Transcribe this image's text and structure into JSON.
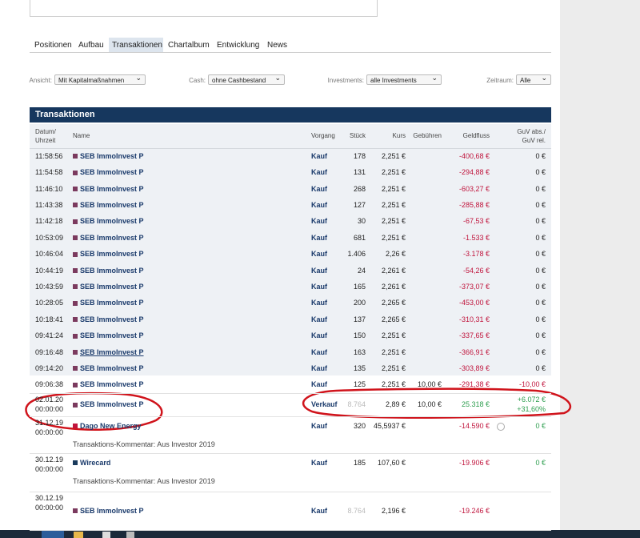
{
  "tabs": [
    "Positionen",
    "Aufbau",
    "Transaktionen",
    "Chartalbum",
    "Entwicklung",
    "News"
  ],
  "filters": [
    {
      "label": "Ansicht:",
      "value": "Mit Kapitalmaßnahmen"
    },
    {
      "label": "Cash:",
      "value": "ohne Cashbestand"
    },
    {
      "label": "Investments:",
      "value": "alle Investments"
    },
    {
      "label": "Zeitraum:",
      "value": "Alle"
    }
  ],
  "table": {
    "title": "Transaktionen",
    "columns": [
      "Datum/ Uhrzeit",
      "Name",
      "Vorgang",
      "Stück",
      "Kurs",
      "Gebühren",
      "Geldfluss",
      "GuV abs./ GuV rel."
    ],
    "rows": [
      {
        "time": "11:58:56",
        "name": "SEB ImmoInvest P",
        "color": "#7b3a5e",
        "type": "Kauf",
        "qty": "178",
        "price": "2,251 €",
        "cashflow": "-400,68 €",
        "pnl": "0 €"
      },
      {
        "time": "11:54:58",
        "name": "SEB ImmoInvest P",
        "color": "#7b3a5e",
        "type": "Kauf",
        "qty": "131",
        "price": "2,251 €",
        "cashflow": "-294,88 €",
        "pnl": "0 €"
      },
      {
        "time": "11:46:10",
        "name": "SEB ImmoInvest P",
        "color": "#7b3a5e",
        "type": "Kauf",
        "qty": "268",
        "price": "2,251 €",
        "cashflow": "-603,27 €",
        "pnl": "0 €"
      },
      {
        "time": "11:43:38",
        "name": "SEB ImmoInvest P",
        "color": "#7b3a5e",
        "type": "Kauf",
        "qty": "127",
        "price": "2,251 €",
        "cashflow": "-285,88 €",
        "pnl": "0 €"
      },
      {
        "time": "11:42:18",
        "name": "SEB ImmoInvest P",
        "color": "#7b3a5e",
        "type": "Kauf",
        "qty": "30",
        "price": "2,251 €",
        "cashflow": "-67,53 €",
        "pnl": "0 €"
      },
      {
        "time": "10:53:09",
        "name": "SEB ImmoInvest P",
        "color": "#7b3a5e",
        "type": "Kauf",
        "qty": "681",
        "price": "2,251 €",
        "cashflow": "-1.533 €",
        "pnl": "0 €"
      },
      {
        "time": "10:46:04",
        "name": "SEB ImmoInvest P",
        "color": "#7b3a5e",
        "type": "Kauf",
        "qty": "1.406",
        "price": "2,26 €",
        "cashflow": "-3.178 €",
        "pnl": "0 €"
      },
      {
        "time": "10:44:19",
        "name": "SEB ImmoInvest P",
        "color": "#7b3a5e",
        "type": "Kauf",
        "qty": "24",
        "price": "2,261 €",
        "cashflow": "-54,26 €",
        "pnl": "0 €"
      },
      {
        "time": "10:43:59",
        "name": "SEB ImmoInvest P",
        "color": "#7b3a5e",
        "type": "Kauf",
        "qty": "165",
        "price": "2,261 €",
        "cashflow": "-373,07 €",
        "pnl": "0 €"
      },
      {
        "time": "10:28:05",
        "name": "SEB ImmoInvest P",
        "color": "#7b3a5e",
        "type": "Kauf",
        "qty": "200",
        "price": "2,265 €",
        "cashflow": "-453,00 €",
        "pnl": "0 €"
      },
      {
        "time": "10:18:41",
        "name": "SEB ImmoInvest P",
        "color": "#7b3a5e",
        "type": "Kauf",
        "qty": "137",
        "price": "2,265 €",
        "cashflow": "-310,31 €",
        "pnl": "0 €"
      },
      {
        "time": "09:41:24",
        "name": "SEB ImmoInvest P",
        "color": "#7b3a5e",
        "type": "Kauf",
        "qty": "150",
        "price": "2,251 €",
        "cashflow": "-337,65 €",
        "pnl": "0 €"
      },
      {
        "time": "09:16:48",
        "name": "SEB ImmoInvest P",
        "color": "#7b3a5e",
        "type": "Kauf",
        "qty": "163",
        "price": "2,251 €",
        "cashflow": "-366,91 €",
        "pnl": "0 €"
      },
      {
        "time": "09:14:20",
        "name": "SEB ImmoInvest P",
        "color": "#7b3a5e",
        "type": "Kauf",
        "qty": "135",
        "price": "2,251 €",
        "cashflow": "-303,89 €",
        "pnl": "0 €"
      },
      {
        "time": "09:06:38",
        "name": "SEB ImmoInvest P",
        "color": "#7b3a5e",
        "type": "Kauf",
        "qty": "125",
        "price": "2,251 €",
        "fee": "10,00 €",
        "cashflow": "-291,38 €",
        "pnl": "-10,00 €"
      },
      {
        "date": "02.01.20",
        "time": "00:00:00",
        "name": "SEB ImmoInvest P",
        "color": "#7b3a5e",
        "type": "Verkauf",
        "qty": "8.764",
        "qty_muted": true,
        "price": "2,89 €",
        "fee": "10,00 €",
        "cashflow": "25.318 €",
        "pnl": "+6.072 €",
        "pnl_rel": "+31,60%"
      },
      {
        "date": "31.12.19",
        "time": "00:00:00",
        "name": "Dago New Energy",
        "color": "#c0143c",
        "type": "Kauf",
        "qty": "320",
        "price": "45,5937 €",
        "cashflow": "-14.590 €",
        "pnl": "0 €",
        "comment": "Transaktions-Kommentar: Aus Investor 2019"
      },
      {
        "date": "30.12.19",
        "time": "00:00:00",
        "name": "Wirecard",
        "color": "#1a3a5c",
        "type": "Kauf",
        "qty": "185",
        "price": "107,60 €",
        "cashflow": "-19.906 €",
        "pnl": "0 €",
        "comment": "Transaktions-Kommentar: Aus Investor 2019"
      },
      {
        "date": "30.12.19",
        "time": "00:00:00",
        "name": "SEB ImmoInvest P",
        "color": "#7b3a5e",
        "type": "Kauf",
        "qty": "8.764",
        "qty_muted": true,
        "price": "2,196 €",
        "cashflow": "-19.246 €"
      }
    ]
  }
}
